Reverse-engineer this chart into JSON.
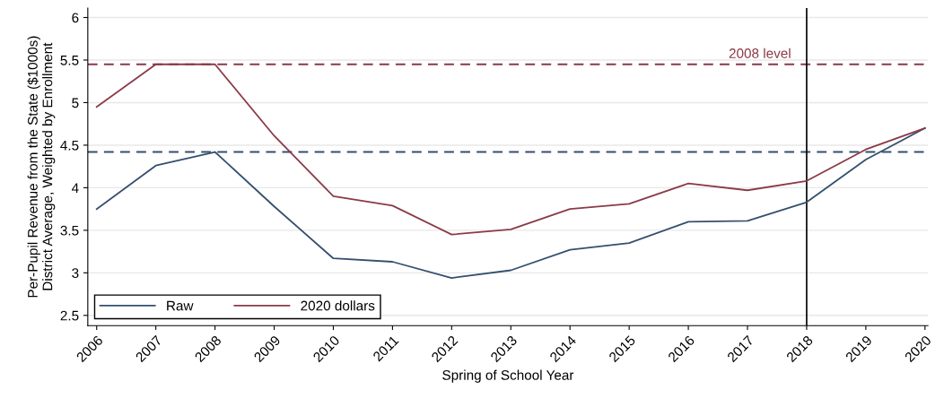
{
  "chart_data": {
    "type": "line",
    "xlabel": "Spring of School Year",
    "ylabel": "Per-Pupil Revenue from the State ($1000s)\nDistrict Average, Weighted by Enrollment",
    "x": [
      2006,
      2007,
      2008,
      2009,
      2010,
      2011,
      2012,
      2013,
      2014,
      2015,
      2016,
      2017,
      2018,
      2019,
      2020
    ],
    "series": [
      {
        "name": "Raw",
        "color": "#34506e",
        "values": [
          3.75,
          4.26,
          4.42,
          3.78,
          3.17,
          3.13,
          2.94,
          3.03,
          3.27,
          3.35,
          3.6,
          3.61,
          3.83,
          4.33,
          4.7
        ]
      },
      {
        "name": "2020 dollars",
        "color": "#8b3a47",
        "values": [
          4.95,
          5.45,
          5.45,
          4.61,
          3.9,
          3.79,
          3.45,
          3.51,
          3.75,
          3.81,
          4.05,
          3.97,
          4.08,
          4.45,
          4.7
        ]
      }
    ],
    "ref_lines": [
      {
        "axis": "y",
        "value": 5.45,
        "label": "2008 level",
        "color": "#8b3a47",
        "line_style": "dashed"
      },
      {
        "axis": "y",
        "value": 4.42,
        "color": "#34506e",
        "line_style": "dashed"
      },
      {
        "axis": "x",
        "value": 2018,
        "color": "#000000",
        "line_style": "solid"
      }
    ],
    "xlim": [
      2005.85,
      2020.05
    ],
    "ylim": [
      2.38,
      6.11
    ],
    "xticks": [
      2006,
      2007,
      2008,
      2009,
      2010,
      2011,
      2012,
      2013,
      2014,
      2015,
      2016,
      2017,
      2018,
      2019,
      2020
    ],
    "yticks": [
      2.5,
      3,
      3.5,
      4,
      4.5,
      5,
      5.5,
      6
    ],
    "grid": "y",
    "legend": "bottom left",
    "marker": "none",
    "line_style": "solid"
  }
}
